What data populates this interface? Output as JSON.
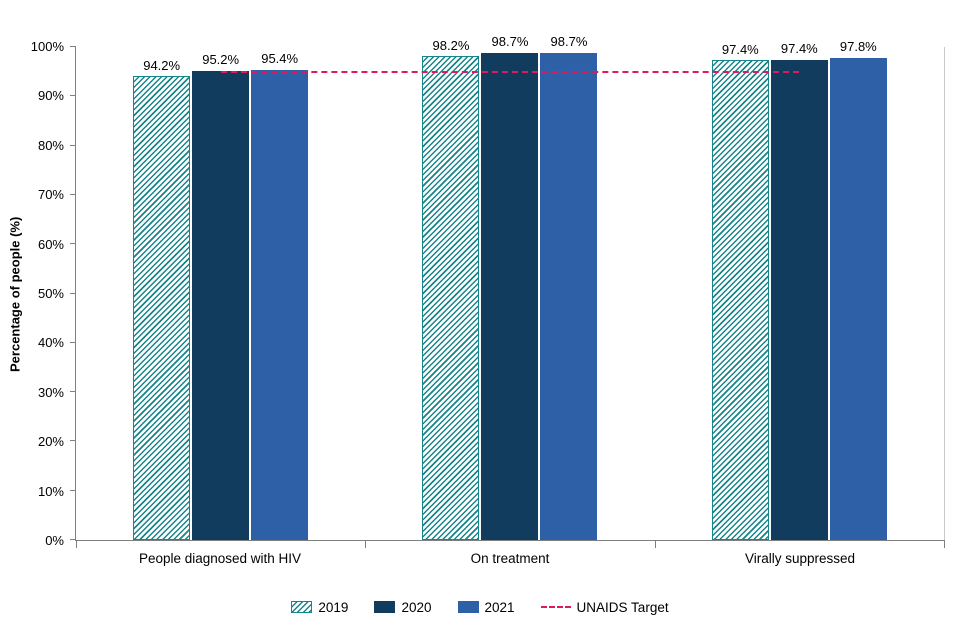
{
  "chart_data": {
    "type": "bar",
    "title": "",
    "xlabel": "",
    "ylabel": "Percentage of people (%)",
    "ylim": [
      0,
      100
    ],
    "grid": false,
    "legend_position": "bottom",
    "ytick_labels": [
      "0%",
      "10%",
      "20%",
      "30%",
      "40%",
      "50%",
      "60%",
      "70%",
      "80%",
      "90%",
      "100%"
    ],
    "categories": [
      "People diagnosed with HIV",
      "On treatment",
      "Virally suppressed"
    ],
    "series": [
      {
        "name": "2019",
        "values": [
          94.2,
          98.2,
          97.4
        ],
        "color": "#17868b",
        "pattern": "hatch"
      },
      {
        "name": "2020",
        "values": [
          95.2,
          98.7,
          97.4
        ],
        "color": "#123c5e",
        "pattern": "solid"
      },
      {
        "name": "2021",
        "values": [
          95.4,
          98.7,
          97.8
        ],
        "color": "#2e60a8",
        "pattern": "solid"
      }
    ],
    "data_labels": [
      [
        "94.2%",
        "98.2%",
        "97.4%"
      ],
      [
        "95.2%",
        "98.7%",
        "97.4%"
      ],
      [
        "95.4%",
        "98.7%",
        "97.8%"
      ]
    ],
    "target": {
      "name": "UNAIDS Target",
      "value": 95,
      "color": "#e0195e",
      "style": "dashed"
    }
  }
}
